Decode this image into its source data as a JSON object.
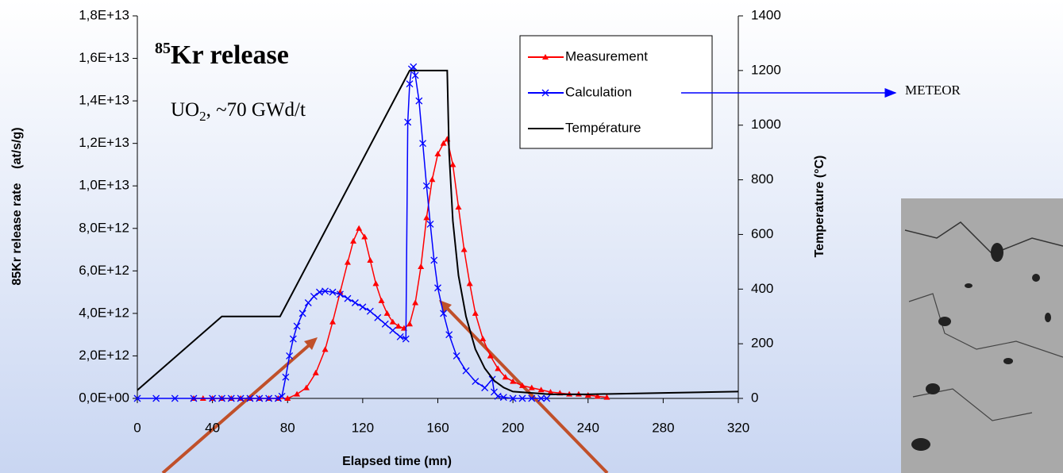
{
  "chart_data": {
    "type": "line",
    "title_sup": "85",
    "title": "Kr release",
    "subtitle_parts": [
      "UO",
      "2",
      ", ~70 GWd/t"
    ],
    "x_label": "Elapsed time (mn)",
    "y_label": "85Kr release rate    (at/s/g)",
    "y2_label": "Temperature (°C)",
    "annotation": "METEOR",
    "xlim": [
      0,
      320
    ],
    "xticks": [
      0,
      40,
      80,
      120,
      160,
      200,
      240,
      280,
      320
    ],
    "ylim": [
      0,
      18000000000000.0
    ],
    "yticks": [
      {
        "value": 0,
        "label": "0,0E+00"
      },
      {
        "value": 2000000000000.0,
        "label": "2,0E+12"
      },
      {
        "value": 4000000000000.0,
        "label": "4,0E+12"
      },
      {
        "value": 6000000000000.0,
        "label": "6,0E+12"
      },
      {
        "value": 8000000000000.0,
        "label": "8,0E+12"
      },
      {
        "value": 10000000000000.0,
        "label": "1,0E+13"
      },
      {
        "value": 12000000000000.0,
        "label": "1,2E+13"
      },
      {
        "value": 14000000000000.0,
        "label": "1,4E+13"
      },
      {
        "value": 16000000000000.0,
        "label": "1,6E+13"
      },
      {
        "value": 18000000000000.0,
        "label": "1,8E+13"
      }
    ],
    "y2lim": [
      0,
      1400
    ],
    "y2ticks": [
      0,
      200,
      400,
      600,
      800,
      1000,
      1200,
      1400
    ],
    "grid": false,
    "legend": "top-right",
    "series": [
      {
        "name": "Measurement",
        "color": "#ff0000",
        "marker": "triangle",
        "x": [
          30,
          35,
          40,
          45,
          50,
          55,
          60,
          65,
          70,
          75,
          80,
          85,
          90,
          95,
          100,
          104,
          108,
          112,
          115,
          118,
          121,
          124,
          127,
          130,
          133,
          136,
          139,
          142,
          145,
          148,
          151,
          154,
          157,
          160,
          163,
          165,
          168,
          171,
          174,
          177,
          180,
          184,
          188,
          192,
          196,
          200,
          205,
          210,
          215,
          220,
          225,
          230,
          235,
          240,
          245,
          250
        ],
        "values": [
          0,
          0,
          0,
          0,
          0,
          0,
          0,
          0,
          0,
          0,
          0,
          200000000000.0,
          500000000000.0,
          1200000000000.0,
          2300000000000.0,
          3600000000000.0,
          5000000000000.0,
          6400000000000.0,
          7400000000000.0,
          8000000000000.0,
          7600000000000.0,
          6500000000000.0,
          5400000000000.0,
          4600000000000.0,
          4000000000000.0,
          3600000000000.0,
          3400000000000.0,
          3300000000000.0,
          3500000000000.0,
          4500000000000.0,
          6200000000000.0,
          8500000000000.0,
          10300000000000.0,
          11500000000000.0,
          12000000000000.0,
          12200000000000.0,
          11000000000000.0,
          9000000000000.0,
          7000000000000.0,
          5400000000000.0,
          4000000000000.0,
          2800000000000.0,
          2000000000000.0,
          1400000000000.0,
          1000000000000.0,
          800000000000.0,
          600000000000.0,
          500000000000.0,
          400000000000.0,
          300000000000.0,
          250000000000.0,
          200000000000.0,
          200000000000.0,
          150000000000.0,
          100000000000.0,
          50000000000.0
        ]
      },
      {
        "name": "Calculation",
        "color": "#0000ff",
        "marker": "cross",
        "x": [
          0,
          10,
          20,
          30,
          40,
          45,
          50,
          55,
          60,
          65,
          70,
          75,
          77,
          79,
          81,
          83,
          85,
          88,
          91,
          94,
          97,
          100,
          104,
          108,
          112,
          116,
          120,
          124,
          128,
          132,
          136,
          140,
          143,
          144,
          145,
          146,
          147,
          148,
          150,
          152,
          154,
          156,
          158,
          160,
          163,
          166,
          170,
          175,
          180,
          185,
          189,
          190,
          192,
          195,
          200,
          205,
          210,
          215,
          218
        ],
        "values": [
          0,
          0,
          0,
          0,
          0,
          0,
          0,
          0,
          0,
          0,
          0,
          0,
          100000000000.0,
          1000000000000.0,
          2000000000000.0,
          2800000000000.0,
          3400000000000.0,
          4000000000000.0,
          4500000000000.0,
          4800000000000.0,
          5000000000000.0,
          5050000000000.0,
          5000000000000.0,
          4900000000000.0,
          4700000000000.0,
          4500000000000.0,
          4300000000000.0,
          4100000000000.0,
          3800000000000.0,
          3500000000000.0,
          3200000000000.0,
          2900000000000.0,
          2800000000000.0,
          13000000000000.0,
          14800000000000.0,
          15500000000000.0,
          15600000000000.0,
          15200000000000.0,
          14000000000000.0,
          12000000000000.0,
          10000000000000.0,
          8200000000000.0,
          6500000000000.0,
          5200000000000.0,
          4000000000000.0,
          3000000000000.0,
          2000000000000.0,
          1300000000000.0,
          800000000000.0,
          500000000000.0,
          900000000000.0,
          300000000000.0,
          100000000000.0,
          50000000000.0,
          0,
          0,
          0,
          0,
          0
        ]
      },
      {
        "name": "Température",
        "color": "#000000",
        "axis": "y2",
        "x": [
          0,
          45,
          76,
          145,
          165,
          166,
          168,
          171,
          175,
          180,
          185,
          190,
          195,
          200,
          220,
          240,
          280,
          320
        ],
        "values": [
          30,
          300,
          300,
          1200,
          1200,
          900,
          650,
          450,
          300,
          180,
          110,
          65,
          40,
          25,
          15,
          15,
          20,
          25
        ]
      }
    ]
  }
}
